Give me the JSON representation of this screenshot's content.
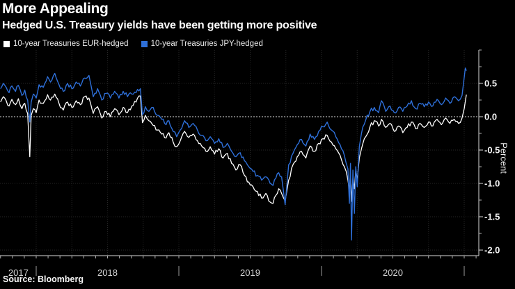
{
  "header": {
    "title": "More Appealing",
    "subtitle": "Hedged U.S. Treasury yields have been getting more positive"
  },
  "legend": [
    {
      "label": "10-year Treasuries EUR-hedged",
      "color": "#ffffff"
    },
    {
      "label": "10-year Treasuries JPY-hedged",
      "color": "#2e6fd8"
    }
  ],
  "source": "Source: Bloomberg",
  "colors": {
    "background": "#000000",
    "axis": "#d9d9d9",
    "tick": "#b0b0b0",
    "grid": "#262626",
    "zero_line": "#dcdcdc",
    "year_label": "#d6d6d6",
    "tick_label": "#f5f5f5"
  },
  "chart_data": {
    "type": "line",
    "title": "More Appealing",
    "subtitle": "Hedged U.S. Treasury yields have been getting more positive",
    "ylabel": "Percent",
    "x_unit": "decimal_year",
    "x_range": [
      2017.75,
      2021.03
    ],
    "ylim": [
      -2.08,
      1.0
    ],
    "grid": "dotted, quarterly vertical + 0.5-step horizontal, dashed zero line",
    "legend_position": "top-left",
    "y_ticks": [
      {
        "value": 0.5,
        "label": "0.5"
      },
      {
        "value": 0.0,
        "label": "0.0"
      },
      {
        "value": -0.5,
        "label": "-0.5"
      },
      {
        "value": -1.0,
        "label": "-1.0"
      },
      {
        "value": -1.5,
        "label": "-1.5"
      },
      {
        "value": -2.0,
        "label": "-2.0"
      }
    ],
    "x_year_separators": [
      2018,
      2019,
      2020,
      2021
    ],
    "x_year_labels": [
      {
        "label": "2017",
        "center": 2017.875
      },
      {
        "label": "2018",
        "center": 2018.5
      },
      {
        "label": "2019",
        "center": 2019.5
      },
      {
        "label": "2020",
        "center": 2020.5
      }
    ],
    "series": [
      {
        "name": "10-year Treasuries EUR-hedged",
        "color": "#ffffff",
        "points": [
          [
            2017.75,
            0.22
          ],
          [
            2017.77,
            0.3
          ],
          [
            2017.79,
            0.24
          ],
          [
            2017.81,
            0.16
          ],
          [
            2017.83,
            0.26
          ],
          [
            2017.855,
            0.18
          ],
          [
            2017.875,
            0.27
          ],
          [
            2017.9,
            0.12
          ],
          [
            2017.92,
            0.2
          ],
          [
            2017.94,
            0.05
          ],
          [
            2017.955,
            -0.6
          ],
          [
            2017.965,
            0.02
          ],
          [
            2017.98,
            0.12
          ],
          [
            2018.0,
            0.06
          ],
          [
            2018.02,
            0.25
          ],
          [
            2018.05,
            0.2
          ],
          [
            2018.08,
            0.33
          ],
          [
            2018.1,
            0.25
          ],
          [
            2018.13,
            0.34
          ],
          [
            2018.16,
            0.2
          ],
          [
            2018.19,
            0.1
          ],
          [
            2018.22,
            0.22
          ],
          [
            2018.25,
            0.14
          ],
          [
            2018.28,
            0.24
          ],
          [
            2018.31,
            0.18
          ],
          [
            2018.34,
            0.3
          ],
          [
            2018.37,
            0.28
          ],
          [
            2018.4,
            0.05
          ],
          [
            2018.43,
            0.15
          ],
          [
            2018.46,
            -0.02
          ],
          [
            2018.49,
            0.08
          ],
          [
            2018.52,
            0.0
          ],
          [
            2018.55,
            0.12
          ],
          [
            2018.58,
            0.03
          ],
          [
            2018.61,
            0.14
          ],
          [
            2018.64,
            0.06
          ],
          [
            2018.67,
            0.16
          ],
          [
            2018.7,
            0.22
          ],
          [
            2018.73,
            0.31
          ],
          [
            2018.745,
            -0.09
          ],
          [
            2018.765,
            0.02
          ],
          [
            2018.79,
            -0.06
          ],
          [
            2018.82,
            -0.13
          ],
          [
            2018.85,
            -0.2
          ],
          [
            2018.88,
            -0.26
          ],
          [
            2018.91,
            -0.32
          ],
          [
            2018.93,
            -0.24
          ],
          [
            2018.96,
            -0.38
          ],
          [
            2018.985,
            -0.45
          ],
          [
            2019.01,
            -0.36
          ],
          [
            2019.04,
            -0.22
          ],
          [
            2019.07,
            -0.31
          ],
          [
            2019.1,
            -0.26
          ],
          [
            2019.13,
            -0.36
          ],
          [
            2019.16,
            -0.44
          ],
          [
            2019.19,
            -0.52
          ],
          [
            2019.22,
            -0.45
          ],
          [
            2019.25,
            -0.56
          ],
          [
            2019.28,
            -0.48
          ],
          [
            2019.31,
            -0.62
          ],
          [
            2019.34,
            -0.55
          ],
          [
            2019.37,
            -0.7
          ],
          [
            2019.4,
            -0.8
          ],
          [
            2019.43,
            -0.72
          ],
          [
            2019.46,
            -0.88
          ],
          [
            2019.49,
            -0.98
          ],
          [
            2019.52,
            -1.05
          ],
          [
            2019.55,
            -1.12
          ],
          [
            2019.58,
            -1.22
          ],
          [
            2019.61,
            -1.15
          ],
          [
            2019.64,
            -1.28
          ],
          [
            2019.66,
            -1.3
          ],
          [
            2019.68,
            -1.18
          ],
          [
            2019.7,
            -1.08
          ],
          [
            2019.72,
            -1.15
          ],
          [
            2019.745,
            -1.26
          ],
          [
            2019.77,
            -0.95
          ],
          [
            2019.8,
            -0.72
          ],
          [
            2019.83,
            -0.6
          ],
          [
            2019.86,
            -0.52
          ],
          [
            2019.89,
            -0.62
          ],
          [
            2019.92,
            -0.44
          ],
          [
            2019.95,
            -0.52
          ],
          [
            2019.98,
            -0.4
          ],
          [
            2020.01,
            -0.33
          ],
          [
            2020.04,
            -0.28
          ],
          [
            2020.07,
            -0.38
          ],
          [
            2020.1,
            -0.48
          ],
          [
            2020.13,
            -0.58
          ],
          [
            2020.16,
            -0.75
          ],
          [
            2020.185,
            -0.95
          ],
          [
            2020.195,
            -1.1
          ],
          [
            2020.203,
            -0.85
          ],
          [
            2020.21,
            -1.27
          ],
          [
            2020.22,
            -0.92
          ],
          [
            2020.23,
            -1.08
          ],
          [
            2020.24,
            -0.8
          ],
          [
            2020.25,
            -0.95
          ],
          [
            2020.265,
            -0.62
          ],
          [
            2020.28,
            -0.48
          ],
          [
            2020.31,
            -0.3
          ],
          [
            2020.34,
            -0.15
          ],
          [
            2020.37,
            -0.06
          ],
          [
            2020.4,
            -0.14
          ],
          [
            2020.42,
            -0.04
          ],
          [
            2020.45,
            -0.16
          ],
          [
            2020.48,
            -0.1
          ],
          [
            2020.51,
            -0.22
          ],
          [
            2020.54,
            -0.14
          ],
          [
            2020.57,
            -0.24
          ],
          [
            2020.6,
            -0.16
          ],
          [
            2020.63,
            -0.08
          ],
          [
            2020.66,
            -0.18
          ],
          [
            2020.69,
            -0.1
          ],
          [
            2020.72,
            -0.16
          ],
          [
            2020.75,
            -0.08
          ],
          [
            2020.78,
            -0.14
          ],
          [
            2020.81,
            -0.04
          ],
          [
            2020.84,
            -0.12
          ],
          [
            2020.87,
            -0.02
          ],
          [
            2020.9,
            -0.1
          ],
          [
            2020.93,
            -0.04
          ],
          [
            2020.96,
            -0.1
          ],
          [
            2020.985,
            -0.02
          ],
          [
            2021.0,
            0.12
          ],
          [
            2021.015,
            0.33
          ]
        ]
      },
      {
        "name": "10-year Treasuries JPY-hedged",
        "color": "#2e6fd8",
        "points": [
          [
            2017.75,
            0.42
          ],
          [
            2017.77,
            0.5
          ],
          [
            2017.79,
            0.44
          ],
          [
            2017.81,
            0.36
          ],
          [
            2017.83,
            0.46
          ],
          [
            2017.855,
            0.38
          ],
          [
            2017.875,
            0.47
          ],
          [
            2017.9,
            0.32
          ],
          [
            2017.92,
            0.4
          ],
          [
            2017.94,
            0.25
          ],
          [
            2017.955,
            -0.08
          ],
          [
            2017.965,
            0.22
          ],
          [
            2017.98,
            0.34
          ],
          [
            2018.0,
            0.28
          ],
          [
            2018.02,
            0.48
          ],
          [
            2018.05,
            0.44
          ],
          [
            2018.08,
            0.6
          ],
          [
            2018.1,
            0.52
          ],
          [
            2018.13,
            0.65
          ],
          [
            2018.16,
            0.48
          ],
          [
            2018.19,
            0.38
          ],
          [
            2018.22,
            0.5
          ],
          [
            2018.25,
            0.42
          ],
          [
            2018.28,
            0.52
          ],
          [
            2018.31,
            0.46
          ],
          [
            2018.34,
            0.58
          ],
          [
            2018.37,
            0.62
          ],
          [
            2018.4,
            0.3
          ],
          [
            2018.43,
            0.42
          ],
          [
            2018.46,
            0.25
          ],
          [
            2018.49,
            0.35
          ],
          [
            2018.52,
            0.28
          ],
          [
            2018.55,
            0.38
          ],
          [
            2018.58,
            0.28
          ],
          [
            2018.61,
            0.38
          ],
          [
            2018.64,
            0.3
          ],
          [
            2018.67,
            0.34
          ],
          [
            2018.7,
            0.36
          ],
          [
            2018.73,
            0.42
          ],
          [
            2018.745,
            0.03
          ],
          [
            2018.765,
            0.15
          ],
          [
            2018.79,
            0.08
          ],
          [
            2018.82,
            0.14
          ],
          [
            2018.85,
            0.02
          ],
          [
            2018.88,
            -0.04
          ],
          [
            2018.91,
            -0.12
          ],
          [
            2018.93,
            -0.06
          ],
          [
            2018.96,
            -0.22
          ],
          [
            2018.985,
            -0.3
          ],
          [
            2019.01,
            -0.2
          ],
          [
            2019.04,
            -0.06
          ],
          [
            2019.07,
            -0.16
          ],
          [
            2019.1,
            -0.1
          ],
          [
            2019.13,
            -0.2
          ],
          [
            2019.16,
            -0.28
          ],
          [
            2019.19,
            -0.36
          ],
          [
            2019.22,
            -0.3
          ],
          [
            2019.25,
            -0.4
          ],
          [
            2019.28,
            -0.33
          ],
          [
            2019.31,
            -0.46
          ],
          [
            2019.34,
            -0.4
          ],
          [
            2019.37,
            -0.52
          ],
          [
            2019.4,
            -0.6
          ],
          [
            2019.43,
            -0.54
          ],
          [
            2019.46,
            -0.66
          ],
          [
            2019.49,
            -0.75
          ],
          [
            2019.52,
            -0.82
          ],
          [
            2019.55,
            -0.88
          ],
          [
            2019.58,
            -0.95
          ],
          [
            2019.61,
            -0.9
          ],
          [
            2019.64,
            -1.0
          ],
          [
            2019.66,
            -1.03
          ],
          [
            2019.68,
            -0.92
          ],
          [
            2019.7,
            -0.84
          ],
          [
            2019.72,
            -0.9
          ],
          [
            2019.745,
            -1.32
          ],
          [
            2019.77,
            -0.72
          ],
          [
            2019.8,
            -0.55
          ],
          [
            2019.83,
            -0.42
          ],
          [
            2019.86,
            -0.34
          ],
          [
            2019.89,
            -0.44
          ],
          [
            2019.92,
            -0.26
          ],
          [
            2019.95,
            -0.34
          ],
          [
            2019.98,
            -0.22
          ],
          [
            2020.01,
            -0.15
          ],
          [
            2020.04,
            -0.08
          ],
          [
            2020.07,
            -0.2
          ],
          [
            2020.1,
            -0.3
          ],
          [
            2020.13,
            -0.42
          ],
          [
            2020.16,
            -0.58
          ],
          [
            2020.185,
            -0.78
          ],
          [
            2020.195,
            -1.3
          ],
          [
            2020.203,
            -0.7
          ],
          [
            2020.21,
            -1.85
          ],
          [
            2020.22,
            -0.8
          ],
          [
            2020.23,
            -1.45
          ],
          [
            2020.24,
            -0.75
          ],
          [
            2020.25,
            -1.05
          ],
          [
            2020.265,
            -0.45
          ],
          [
            2020.28,
            -0.25
          ],
          [
            2020.31,
            -0.05
          ],
          [
            2020.34,
            0.08
          ],
          [
            2020.37,
            0.14
          ],
          [
            2020.4,
            0.06
          ],
          [
            2020.42,
            0.24
          ],
          [
            2020.45,
            0.08
          ],
          [
            2020.48,
            0.16
          ],
          [
            2020.51,
            0.06
          ],
          [
            2020.54,
            0.14
          ],
          [
            2020.57,
            0.08
          ],
          [
            2020.6,
            0.16
          ],
          [
            2020.63,
            0.24
          ],
          [
            2020.66,
            0.12
          ],
          [
            2020.69,
            0.2
          ],
          [
            2020.72,
            0.15
          ],
          [
            2020.75,
            0.22
          ],
          [
            2020.78,
            0.16
          ],
          [
            2020.81,
            0.26
          ],
          [
            2020.84,
            0.18
          ],
          [
            2020.87,
            0.28
          ],
          [
            2020.9,
            0.2
          ],
          [
            2020.93,
            0.3
          ],
          [
            2020.96,
            0.24
          ],
          [
            2020.985,
            0.32
          ],
          [
            2021.008,
            0.73
          ],
          [
            2021.015,
            0.69
          ]
        ]
      }
    ]
  }
}
